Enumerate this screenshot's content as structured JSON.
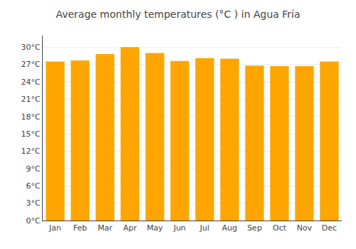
{
  "chart_data": {
    "type": "bar",
    "title": "Average monthly temperatures (°C ) in Agua Fría",
    "categories": [
      "Jan",
      "Feb",
      "Mar",
      "Apr",
      "May",
      "Jun",
      "Jul",
      "Aug",
      "Sep",
      "Oct",
      "Nov",
      "Dec"
    ],
    "values": [
      27.5,
      27.7,
      28.8,
      30.0,
      29.0,
      27.6,
      28.1,
      28.0,
      26.8,
      26.7,
      26.7,
      27.5
    ],
    "color": "#FFA500",
    "ylim": [
      0,
      32
    ],
    "yticks": [
      {
        "value": 0,
        "label": "0°C"
      },
      {
        "value": 3,
        "label": "3°C"
      },
      {
        "value": 6,
        "label": "6°C"
      },
      {
        "value": 9,
        "label": "9°C"
      },
      {
        "value": 12,
        "label": "12°C"
      },
      {
        "value": 15,
        "label": "15°C"
      },
      {
        "value": 18,
        "label": "18°C"
      },
      {
        "value": 21,
        "label": "21°C"
      },
      {
        "value": 24,
        "label": "24°C"
      },
      {
        "value": 27,
        "label": "27°C"
      },
      {
        "value": 30,
        "label": "30°C"
      }
    ],
    "grid": true
  }
}
